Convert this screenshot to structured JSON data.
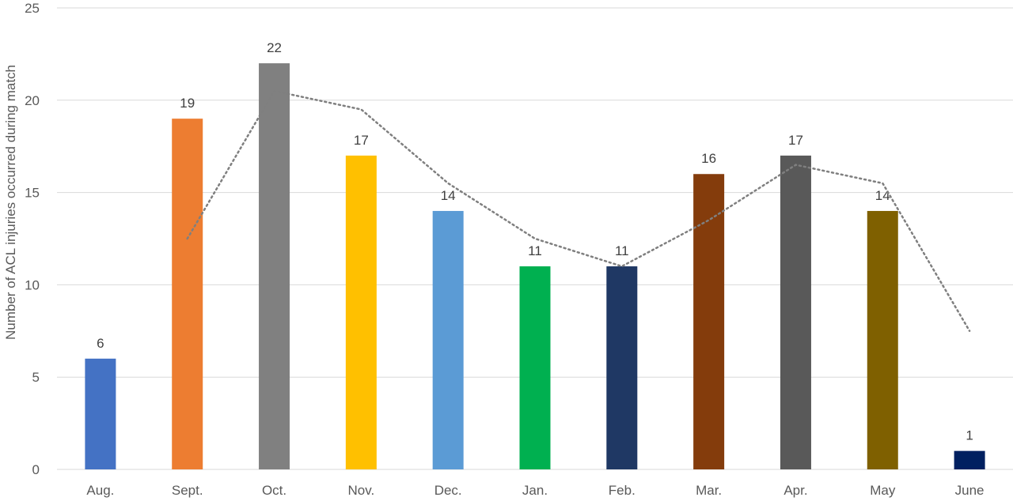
{
  "chart_data": {
    "type": "bar",
    "title": "",
    "xlabel": "",
    "ylabel": "Number of ACL injuries occurred during match",
    "ylim": [
      0,
      25
    ],
    "yticks": [
      0,
      5,
      10,
      15,
      20,
      25
    ],
    "grid": true,
    "legend": "none",
    "categories": [
      "Aug.",
      "Sept.",
      "Oct.",
      "Nov.",
      "Dec.",
      "Jan.",
      "Feb.",
      "Mar.",
      "Apr.",
      "May",
      "June"
    ],
    "values": [
      6,
      19,
      22,
      17,
      14,
      11,
      11,
      16,
      17,
      14,
      1
    ],
    "colors": [
      "#4472c4",
      "#ed7d31",
      "#808080",
      "#ffc000",
      "#5b9bd5",
      "#00b050",
      "#1f3864",
      "#843c0c",
      "#595959",
      "#7f6000",
      "#002060"
    ],
    "trendline": {
      "type": "moving-average",
      "period": 2,
      "style": "dotted",
      "color": "#7f7f7f",
      "values": [
        12.5,
        20.5,
        19.5,
        15.5,
        12.5,
        11,
        13.5,
        16.5,
        15.5,
        7.5
      ]
    }
  }
}
